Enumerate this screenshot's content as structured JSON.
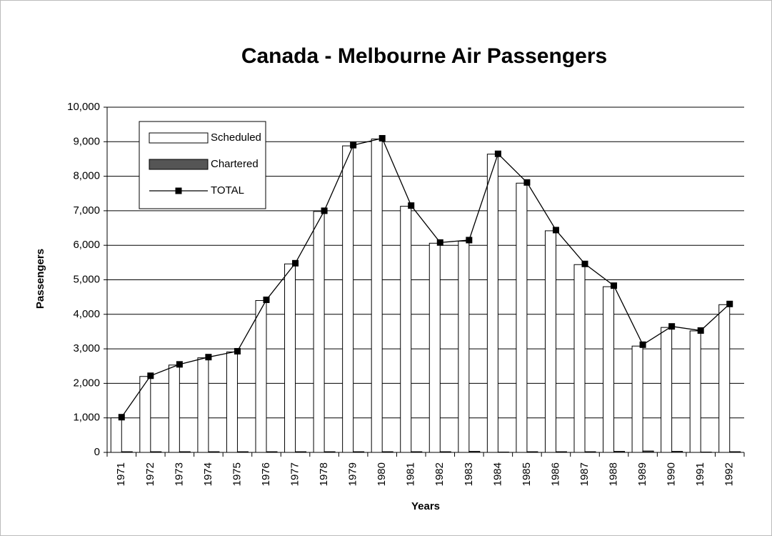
{
  "chart_data": {
    "type": "bar-line",
    "title": "Canada - Melbourne Air Passengers",
    "x_label": "Years",
    "y_label": "Passengers",
    "categories": [
      "1971",
      "1972",
      "1973",
      "1974",
      "1975",
      "1976",
      "1977",
      "1978",
      "1979",
      "1980",
      "1981",
      "1982",
      "1983",
      "1984",
      "1985",
      "1986",
      "1987",
      "1988",
      "1989",
      "1990",
      "1991",
      "1992"
    ],
    "series": [
      {
        "name": "Scheduled",
        "kind": "bar",
        "color": "#ffffff",
        "values": [
          1000,
          2200,
          2530,
          2740,
          2910,
          4400,
          5460,
          6980,
          8880,
          9080,
          7130,
          6060,
          6120,
          8640,
          7800,
          6420,
          5440,
          4800,
          3080,
          3620,
          3520,
          4280
        ]
      },
      {
        "name": "Chartered",
        "kind": "bar",
        "color": "#555555",
        "values": [
          20,
          20,
          20,
          20,
          20,
          20,
          20,
          20,
          20,
          20,
          20,
          20,
          30,
          10,
          20,
          20,
          20,
          30,
          40,
          30,
          10,
          20
        ]
      },
      {
        "name": "TOTAL",
        "kind": "line",
        "color": "#000000",
        "values": [
          1020,
          2220,
          2550,
          2760,
          2930,
          4420,
          5480,
          7000,
          8900,
          9100,
          7150,
          6080,
          6150,
          8650,
          7820,
          6440,
          5460,
          4830,
          3120,
          3650,
          3530,
          4300
        ]
      }
    ],
    "ylim": [
      0,
      10000
    ],
    "yticks": [
      0,
      {
        "value": 1000,
        "label": "1,000"
      },
      {
        "value": 2000,
        "label": "2,000"
      },
      {
        "value": 3000,
        "label": "3,000"
      },
      {
        "value": 4000,
        "label": "4,000"
      },
      {
        "value": 5000,
        "label": "5,000"
      },
      {
        "value": 6000,
        "label": "6,000"
      },
      {
        "value": 7000,
        "label": "7,000"
      },
      {
        "value": 8000,
        "label": "8,000"
      },
      {
        "value": 9000,
        "label": "9,000"
      },
      {
        "value": 10000,
        "label": "10,000"
      }
    ],
    "grid": true,
    "legend": "top-left"
  }
}
